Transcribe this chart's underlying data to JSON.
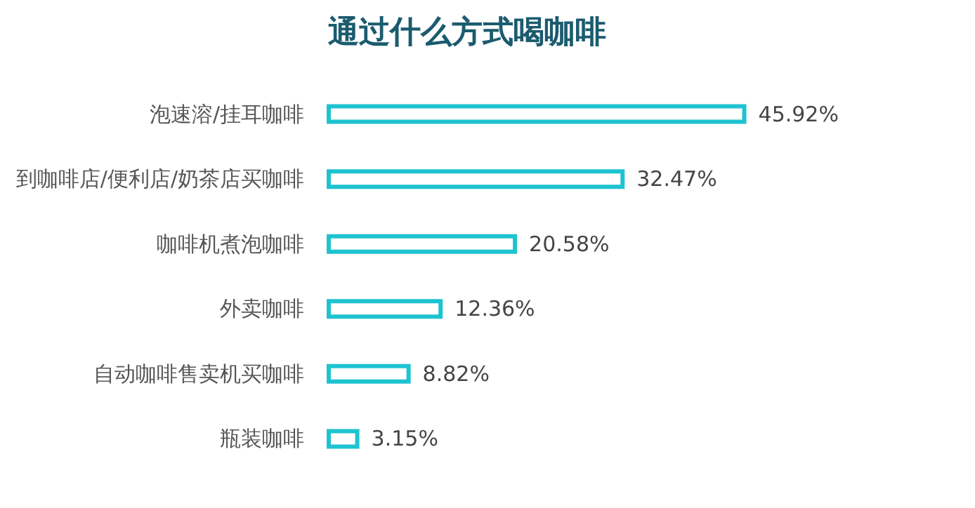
{
  "chart_data": {
    "type": "bar",
    "orientation": "horizontal",
    "title": "通过什么方式喝咖啡",
    "categories": [
      "泡速溶/挂耳咖啡",
      "到咖啡店/便利店/奶茶店买咖啡",
      "咖啡机煮泡咖啡",
      "外卖咖啡",
      "自动咖啡售卖机买咖啡",
      "瓶装咖啡"
    ],
    "values": [
      45.92,
      32.47,
      20.58,
      12.36,
      8.82,
      3.15
    ],
    "value_labels": [
      "45.92%",
      "32.47%",
      "20.58%",
      "12.36%",
      "8.82%",
      "3.15%"
    ],
    "color": "#1ec3d1"
  }
}
